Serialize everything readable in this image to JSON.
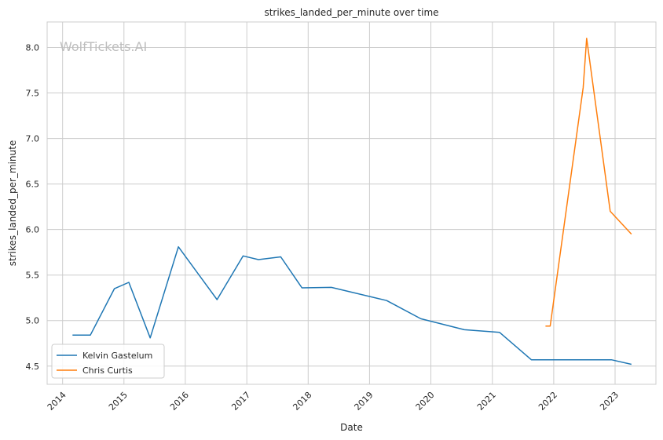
{
  "chart_data": {
    "type": "line",
    "title": "strikes_landed_per_minute over time",
    "xlabel": "Date",
    "ylabel": "strikes_landed_per_minute",
    "watermark": "WolfTickets.AI",
    "x_ticks": [
      "2014",
      "2015",
      "2016",
      "2017",
      "2018",
      "2019",
      "2020",
      "2021",
      "2022",
      "2023"
    ],
    "y_ticks": [
      "4.5",
      "5.0",
      "5.5",
      "6.0",
      "6.5",
      "7.0",
      "7.5",
      "8.0"
    ],
    "xlim": [
      "2013-10-01",
      "2023-09-01"
    ],
    "ylim": [
      4.3,
      8.28
    ],
    "grid": true,
    "legend_position": "bottom-left",
    "series": [
      {
        "name": "Kelvin Gastelum",
        "color": "#1f77b4",
        "points": [
          {
            "x": "2014-03-01",
            "y": 4.84
          },
          {
            "x": "2014-06-15",
            "y": 4.84
          },
          {
            "x": "2014-11-05",
            "y": 5.35
          },
          {
            "x": "2015-01-30",
            "y": 5.42
          },
          {
            "x": "2015-06-06",
            "y": 4.81
          },
          {
            "x": "2015-11-21",
            "y": 5.81
          },
          {
            "x": "2016-07-08",
            "y": 5.23
          },
          {
            "x": "2016-12-10",
            "y": 5.71
          },
          {
            "x": "2017-03-11",
            "y": 5.67
          },
          {
            "x": "2017-07-22",
            "y": 5.7
          },
          {
            "x": "2017-11-25",
            "y": 5.36
          },
          {
            "x": "2018-05-19",
            "y": 5.365
          },
          {
            "x": "2019-04-13",
            "y": 5.22
          },
          {
            "x": "2019-11-02",
            "y": 5.02
          },
          {
            "x": "2020-07-18",
            "y": 4.9
          },
          {
            "x": "2021-02-13",
            "y": 4.87
          },
          {
            "x": "2021-08-21",
            "y": 4.57
          },
          {
            "x": "2022-12-10",
            "y": 4.57
          },
          {
            "x": "2023-04-08",
            "y": 4.52
          }
        ]
      },
      {
        "name": "Chris Curtis",
        "color": "#ff7f0e",
        "points": [
          {
            "x": "2021-11-13",
            "y": 4.94
          },
          {
            "x": "2021-12-11",
            "y": 4.94
          },
          {
            "x": "2022-06-25",
            "y": 7.56
          },
          {
            "x": "2022-07-16",
            "y": 8.1
          },
          {
            "x": "2022-12-03",
            "y": 6.2
          },
          {
            "x": "2023-04-08",
            "y": 5.95
          }
        ]
      }
    ]
  }
}
